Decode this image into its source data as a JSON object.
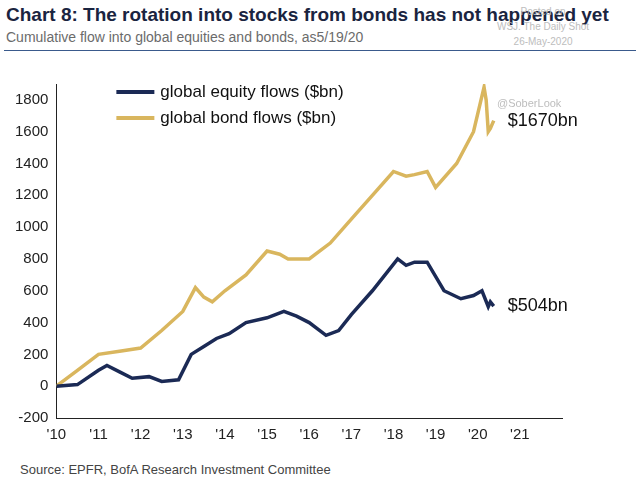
{
  "chart_data": {
    "type": "line",
    "title": "Chart 8: The rotation into stocks from bonds has not happened yet",
    "subtitle": "Cumulative flow into global equities and bonds, as5/19/20",
    "source": "Source: EPFR, BofA Research Investment Committee",
    "watermark": [
      "Posted on",
      "WSJ. The Daily Shot",
      "26-May-2020"
    ],
    "handle": "@SoberLook",
    "legend": "upper left",
    "grid": false,
    "xlim": [
      2010,
      2022
    ],
    "xticks": [
      {
        "value": 2010,
        "label": "'10"
      },
      {
        "value": 2011,
        "label": "'11"
      },
      {
        "value": 2012,
        "label": "'12"
      },
      {
        "value": 2013,
        "label": "'13"
      },
      {
        "value": 2014,
        "label": "'14"
      },
      {
        "value": 2015,
        "label": "'15"
      },
      {
        "value": 2016,
        "label": "'16"
      },
      {
        "value": 2017,
        "label": "'17"
      },
      {
        "value": 2018,
        "label": "'18"
      },
      {
        "value": 2019,
        "label": "'19"
      },
      {
        "value": 2020,
        "label": "'20"
      },
      {
        "value": 2021,
        "label": "'21"
      }
    ],
    "ylim": [
      -200,
      1900
    ],
    "yticks": [
      -200,
      0,
      200,
      400,
      600,
      800,
      1000,
      1200,
      1400,
      1600,
      1800
    ],
    "series": [
      {
        "name": "global equity flows ($bn)",
        "color": "#1b2a55",
        "x": [
          2010,
          2010.5,
          2011,
          2011.2,
          2011.5,
          2011.8,
          2012.2,
          2012.5,
          2012.9,
          2013.2,
          2013.5,
          2013.8,
          2014.1,
          2014.5,
          2015,
          2015.4,
          2015.7,
          2016,
          2016.4,
          2016.7,
          2017,
          2017.5,
          2017.8,
          2018.1,
          2018.3,
          2018.5,
          2018.8,
          2019.2,
          2019.6,
          2019.9,
          2020.1,
          2020.25,
          2020.3,
          2020.38
        ],
        "values": [
          0,
          10,
          100,
          130,
          90,
          50,
          60,
          30,
          40,
          200,
          250,
          300,
          330,
          400,
          430,
          470,
          440,
          400,
          320,
          350,
          450,
          600,
          700,
          800,
          760,
          780,
          780,
          600,
          550,
          570,
          600,
          500,
          530,
          504
        ]
      },
      {
        "name": "global bond flows ($bn)",
        "color": "#d9b65e",
        "x": [
          2010,
          2010.5,
          2011,
          2011.5,
          2012,
          2012.5,
          2013,
          2013.3,
          2013.5,
          2013.7,
          2014,
          2014.5,
          2015,
          2015.3,
          2015.5,
          2016,
          2016.5,
          2017,
          2017.5,
          2018,
          2018.3,
          2018.5,
          2018.8,
          2019,
          2019.5,
          2019.9,
          2020.15,
          2020.2,
          2020.25,
          2020.3,
          2020.38
        ],
        "values": [
          0,
          100,
          200,
          220,
          240,
          350,
          470,
          620,
          560,
          530,
          600,
          700,
          850,
          830,
          800,
          800,
          900,
          1050,
          1200,
          1350,
          1320,
          1330,
          1350,
          1250,
          1400,
          1600,
          1880,
          1800,
          1600,
          1620,
          1670
        ]
      }
    ],
    "annotations": [
      {
        "text": "$1670bn",
        "series": "global bond flows ($bn)"
      },
      {
        "text": "$504bn",
        "series": "global equity flows ($bn)"
      }
    ]
  }
}
